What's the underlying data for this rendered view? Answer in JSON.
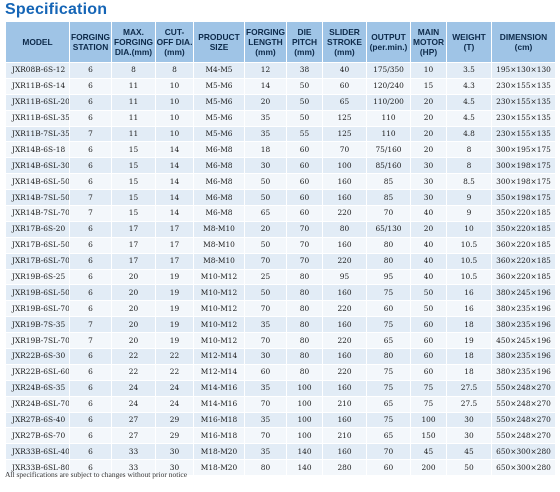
{
  "title": "Specification",
  "columns": [
    [
      "MODEL"
    ],
    [
      "FORGING",
      "STATION"
    ],
    [
      "MAX.",
      "FORGING",
      "DIA.(mm)"
    ],
    [
      "CUT-",
      "OFF DIA.",
      "(mm)"
    ],
    [
      "PRODUCT",
      "SIZE"
    ],
    [
      "FORGING",
      "LENGTH",
      "(mm)"
    ],
    [
      "DIE",
      "PITCH",
      "(mm)"
    ],
    [
      "SLIDER",
      "STROKE",
      "(mm)"
    ],
    [
      "OUTPUT",
      "(per.min.)"
    ],
    [
      "MAIN",
      "MOTOR",
      "(HP)"
    ],
    [
      "WEIGHT",
      "(T)"
    ],
    [
      "DIMENSION",
      "(cm)"
    ]
  ],
  "rows": [
    [
      "JXR08B-6S-12",
      "6",
      "8",
      "8",
      "M4-M5",
      "12",
      "38",
      "40",
      "175/350",
      "10",
      "3.5",
      "195×130×130"
    ],
    [
      "JXR11B-6S-14",
      "6",
      "11",
      "10",
      "M5-M6",
      "14",
      "50",
      "60",
      "120/240",
      "15",
      "4.3",
      "230×155×135"
    ],
    [
      "JXR11B-6SL-20",
      "6",
      "11",
      "10",
      "M5-M6",
      "20",
      "50",
      "65",
      "110/200",
      "20",
      "4.5",
      "230×155×135"
    ],
    [
      "JXR11B-6SL-35",
      "6",
      "11",
      "10",
      "M5-M6",
      "35",
      "50",
      "125",
      "110",
      "20",
      "4.5",
      "230×155×135"
    ],
    [
      "JXR11B-7SL-35",
      "7",
      "11",
      "10",
      "M5-M6",
      "35",
      "55",
      "125",
      "110",
      "20",
      "4.8",
      "230×155×135"
    ],
    [
      "JXR14B-6S-18",
      "6",
      "15",
      "14",
      "M6-M8",
      "18",
      "60",
      "70",
      "75/160",
      "20",
      "8",
      "300×195×175"
    ],
    [
      "JXR14B-6SL-30",
      "6",
      "15",
      "14",
      "M6-M8",
      "30",
      "60",
      "100",
      "85/160",
      "30",
      "8",
      "300×198×175"
    ],
    [
      "JXR14B-6SL-50",
      "6",
      "15",
      "14",
      "M6-M8",
      "50",
      "60",
      "160",
      "85",
      "30",
      "8.5",
      "300×198×175"
    ],
    [
      "JXR14B-7SL-50",
      "7",
      "15",
      "14",
      "M6-M8",
      "50",
      "60",
      "160",
      "85",
      "30",
      "9",
      "350×198×175"
    ],
    [
      "JXR14B-7SL-70",
      "7",
      "15",
      "14",
      "M6-M8",
      "65",
      "60",
      "220",
      "70",
      "40",
      "9",
      "350×220×185"
    ],
    [
      "JXR17B-6S-20",
      "6",
      "17",
      "17",
      "M8-M10",
      "20",
      "70",
      "80",
      "65/130",
      "20",
      "10",
      "350×220×185"
    ],
    [
      "JXR17B-6SL-50",
      "6",
      "17",
      "17",
      "M8-M10",
      "50",
      "70",
      "160",
      "80",
      "40",
      "10.5",
      "360×220×185"
    ],
    [
      "JXR17B-6SL-70",
      "6",
      "17",
      "17",
      "M8-M10",
      "70",
      "70",
      "220",
      "80",
      "40",
      "10.5",
      "360×220×185"
    ],
    [
      "JXR19B-6S-25",
      "6",
      "20",
      "19",
      "M10-M12",
      "25",
      "80",
      "95",
      "95",
      "40",
      "10.5",
      "360×220×185"
    ],
    [
      "JXR19B-6SL-50",
      "6",
      "20",
      "19",
      "M10-M12",
      "50",
      "80",
      "160",
      "75",
      "50",
      "16",
      "380×245×196"
    ],
    [
      "JXR19B-6SL-70",
      "6",
      "20",
      "19",
      "M10-M12",
      "70",
      "80",
      "220",
      "60",
      "50",
      "16",
      "380×235×196"
    ],
    [
      "JXR19B-7S-35",
      "7",
      "20",
      "19",
      "M10-M12",
      "35",
      "80",
      "160",
      "75",
      "60",
      "18",
      "380×235×196"
    ],
    [
      "JXR19B-7SL-70",
      "7",
      "20",
      "19",
      "M10-M12",
      "70",
      "80",
      "220",
      "65",
      "60",
      "19",
      "450×245×196"
    ],
    [
      "JXR22B-6S-30",
      "6",
      "22",
      "22",
      "M12-M14",
      "30",
      "80",
      "160",
      "80",
      "60",
      "18",
      "380×235×196"
    ],
    [
      "JXR22B-6SL-60",
      "6",
      "22",
      "22",
      "M12-M14",
      "60",
      "80",
      "220",
      "75",
      "60",
      "18",
      "380×235×196"
    ],
    [
      "JXR24B-6S-35",
      "6",
      "24",
      "24",
      "M14-M16",
      "35",
      "100",
      "160",
      "75",
      "75",
      "27.5",
      "550×248×270"
    ],
    [
      "JXR24B-6SL-70",
      "6",
      "24",
      "24",
      "M14-M16",
      "70",
      "100",
      "210",
      "65",
      "75",
      "27.5",
      "550×248×270"
    ],
    [
      "JXR27B-6S-40",
      "6",
      "27",
      "29",
      "M16-M18",
      "35",
      "100",
      "160",
      "75",
      "100",
      "30",
      "550×248×270"
    ],
    [
      "JXR27B-6S-70",
      "6",
      "27",
      "29",
      "M16-M18",
      "70",
      "100",
      "210",
      "65",
      "150",
      "30",
      "550×248×270"
    ],
    [
      "JXR33B-6SL-40",
      "6",
      "33",
      "30",
      "M18-M20",
      "35",
      "140",
      "160",
      "70",
      "45",
      "45",
      "650×300×280"
    ],
    [
      "JXR33B-6SL-80",
      "6",
      "33",
      "30",
      "M18-M20",
      "80",
      "140",
      "280",
      "60",
      "200",
      "50",
      "650×300×280"
    ]
  ],
  "footnote": "All specifications are subject to changes without prior notice"
}
